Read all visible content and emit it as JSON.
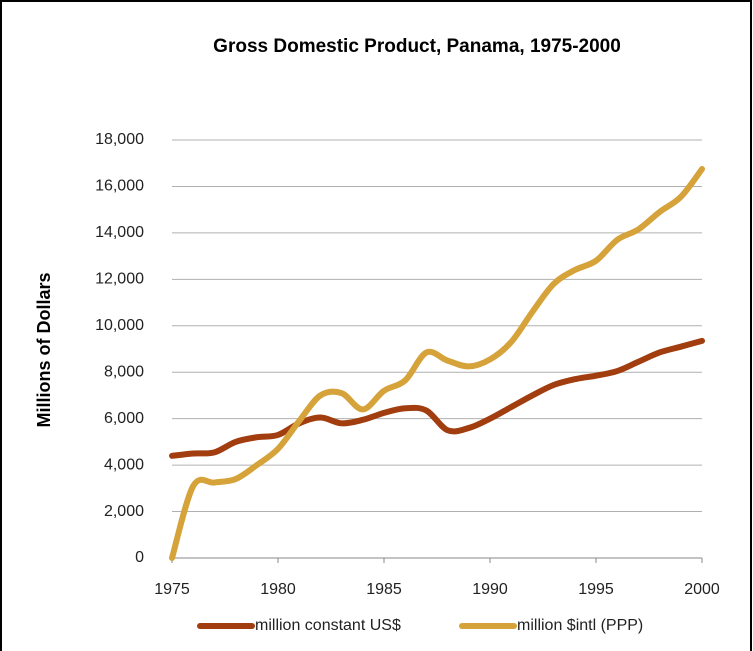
{
  "chart_data": {
    "type": "line",
    "title": "Gross Domestic Product, Panama, 1975-2000",
    "y_label": "Millions of Dollars",
    "x": [
      1975,
      1976,
      1977,
      1978,
      1979,
      1980,
      1981,
      1982,
      1983,
      1984,
      1985,
      1986,
      1987,
      1988,
      1989,
      1990,
      1991,
      1992,
      1993,
      1994,
      1995,
      1996,
      1997,
      1998,
      1999,
      2000
    ],
    "series": [
      {
        "name": "million constant US$",
        "color": "#a13d0e",
        "values": [
          4400,
          4500,
          4550,
          5000,
          5200,
          5300,
          5800,
          6050,
          5800,
          5950,
          6250,
          6450,
          6350,
          5500,
          5600,
          6000,
          6500,
          7000,
          7450,
          7700,
          7850,
          8050,
          8450,
          8850,
          9100,
          9350
        ]
      },
      {
        "name": "million $intl (PPP)",
        "color": "#d6a23a",
        "values": [
          0,
          3100,
          3250,
          3400,
          4000,
          4700,
          5900,
          7000,
          7100,
          6400,
          7200,
          7650,
          8850,
          8500,
          8250,
          8550,
          9300,
          10600,
          11800,
          12400,
          12800,
          13700,
          14150,
          14900,
          15550,
          16750
        ]
      }
    ],
    "xlim": [
      1975,
      2000
    ],
    "xticks": [
      1975,
      1980,
      1985,
      1990,
      1995,
      2000
    ],
    "ylim": [
      0,
      18000
    ],
    "yticks": [
      0,
      {
        "value": 2000,
        "label": "2,000"
      },
      {
        "value": 4000,
        "label": "4,000"
      },
      {
        "value": 6000,
        "label": "6,000"
      },
      {
        "value": 8000,
        "label": "8,000"
      },
      {
        "value": 10000,
        "label": "10,000"
      },
      {
        "value": 12000,
        "label": "12,000"
      },
      {
        "value": 14000,
        "label": "14,000"
      },
      {
        "value": 16000,
        "label": "16,000"
      },
      {
        "value": 18000,
        "label": "18,000"
      }
    ],
    "grid": true,
    "legend": "bottom"
  }
}
